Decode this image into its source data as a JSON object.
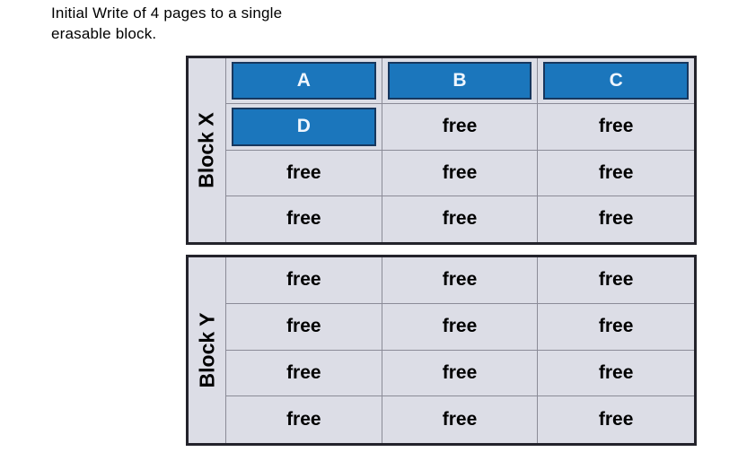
{
  "title": {
    "lines": [
      "Initial Write of 4 pages to a single",
      "erasable block."
    ]
  },
  "colors": {
    "page_bg": "#ffffff",
    "cell_bg": "#dcdde6",
    "written_fill": "#1b76bc",
    "written_border": "#17375e",
    "written_text": "#eff6fe",
    "grid_line": "#8b8b97",
    "outer_border": "#23232b",
    "text": "#000000"
  },
  "blocks": [
    {
      "label": "Block X",
      "rows": [
        [
          {
            "text": "A",
            "state": "filled"
          },
          {
            "text": "B",
            "state": "filled"
          },
          {
            "text": "C",
            "state": "filled"
          }
        ],
        [
          {
            "text": "D",
            "state": "filled"
          },
          {
            "text": "free",
            "state": "free"
          },
          {
            "text": "free",
            "state": "free"
          }
        ],
        [
          {
            "text": "free",
            "state": "free"
          },
          {
            "text": "free",
            "state": "free"
          },
          {
            "text": "free",
            "state": "free"
          }
        ],
        [
          {
            "text": "free",
            "state": "free"
          },
          {
            "text": "free",
            "state": "free"
          },
          {
            "text": "free",
            "state": "free"
          }
        ]
      ]
    },
    {
      "label": "Block Y",
      "rows": [
        [
          {
            "text": "free",
            "state": "free"
          },
          {
            "text": "free",
            "state": "free"
          },
          {
            "text": "free",
            "state": "free"
          }
        ],
        [
          {
            "text": "free",
            "state": "free"
          },
          {
            "text": "free",
            "state": "free"
          },
          {
            "text": "free",
            "state": "free"
          }
        ],
        [
          {
            "text": "free",
            "state": "free"
          },
          {
            "text": "free",
            "state": "free"
          },
          {
            "text": "free",
            "state": "free"
          }
        ],
        [
          {
            "text": "free",
            "state": "free"
          },
          {
            "text": "free",
            "state": "free"
          },
          {
            "text": "free",
            "state": "free"
          }
        ]
      ]
    }
  ]
}
